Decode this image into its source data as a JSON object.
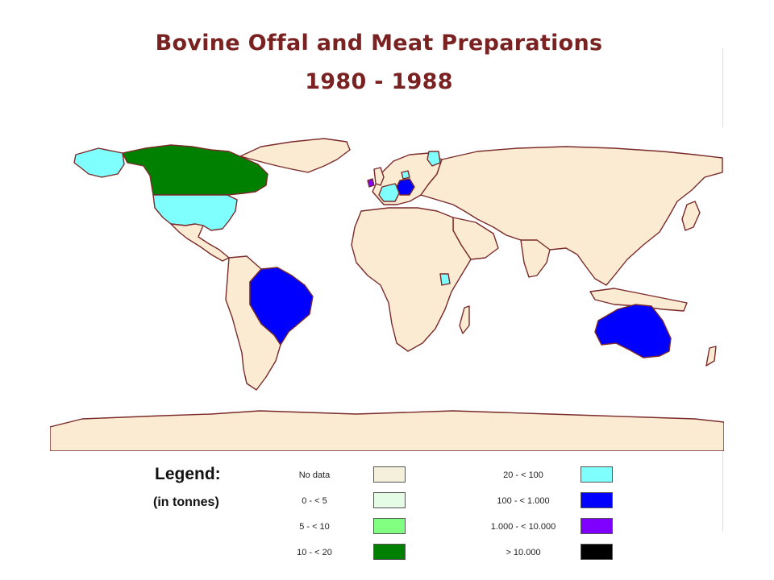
{
  "title": {
    "line1": "Bovine Offal and Meat Preparations",
    "line2": "1980 - 1988"
  },
  "legend": {
    "heading": "Legend:",
    "unit": "(in tonnes)",
    "classes": [
      {
        "label": "No data",
        "color": "#f5f0dc"
      },
      {
        "label": "0 - < 5",
        "color": "#e6fbe6"
      },
      {
        "label": "5 - < 10",
        "color": "#80ff80"
      },
      {
        "label": "10 - < 20",
        "color": "#008000"
      },
      {
        "label": "20 - < 100",
        "color": "#80ffff"
      },
      {
        "label": "100 - < 1.000",
        "color": "#0000ff"
      },
      {
        "label": "1.000 - < 10.000",
        "color": "#8000ff"
      },
      {
        "label": "> 10.000",
        "color": "#000000"
      }
    ]
  },
  "map_colors": {
    "land_default": "#faebd2",
    "border": "#7a2a2a",
    "ocean": "#ffffff"
  },
  "highlighted_countries": [
    {
      "name": "Canada",
      "class": "10 - < 20"
    },
    {
      "name": "United States",
      "class": "20 - < 100"
    },
    {
      "name": "Alaska",
      "class": "20 - < 100"
    },
    {
      "name": "Brazil",
      "class": "100 - < 1.000"
    },
    {
      "name": "Australia",
      "class": "100 - < 1.000"
    },
    {
      "name": "Germany",
      "class": "100 - < 1.000"
    },
    {
      "name": "France",
      "class": "20 - < 100"
    },
    {
      "name": "Ireland",
      "class": "1.000 - < 10.000"
    },
    {
      "name": "Denmark",
      "class": "20 - < 100"
    },
    {
      "name": "Finland",
      "class": "20 - < 100"
    },
    {
      "name": "Uganda",
      "class": "20 - < 100"
    }
  ]
}
